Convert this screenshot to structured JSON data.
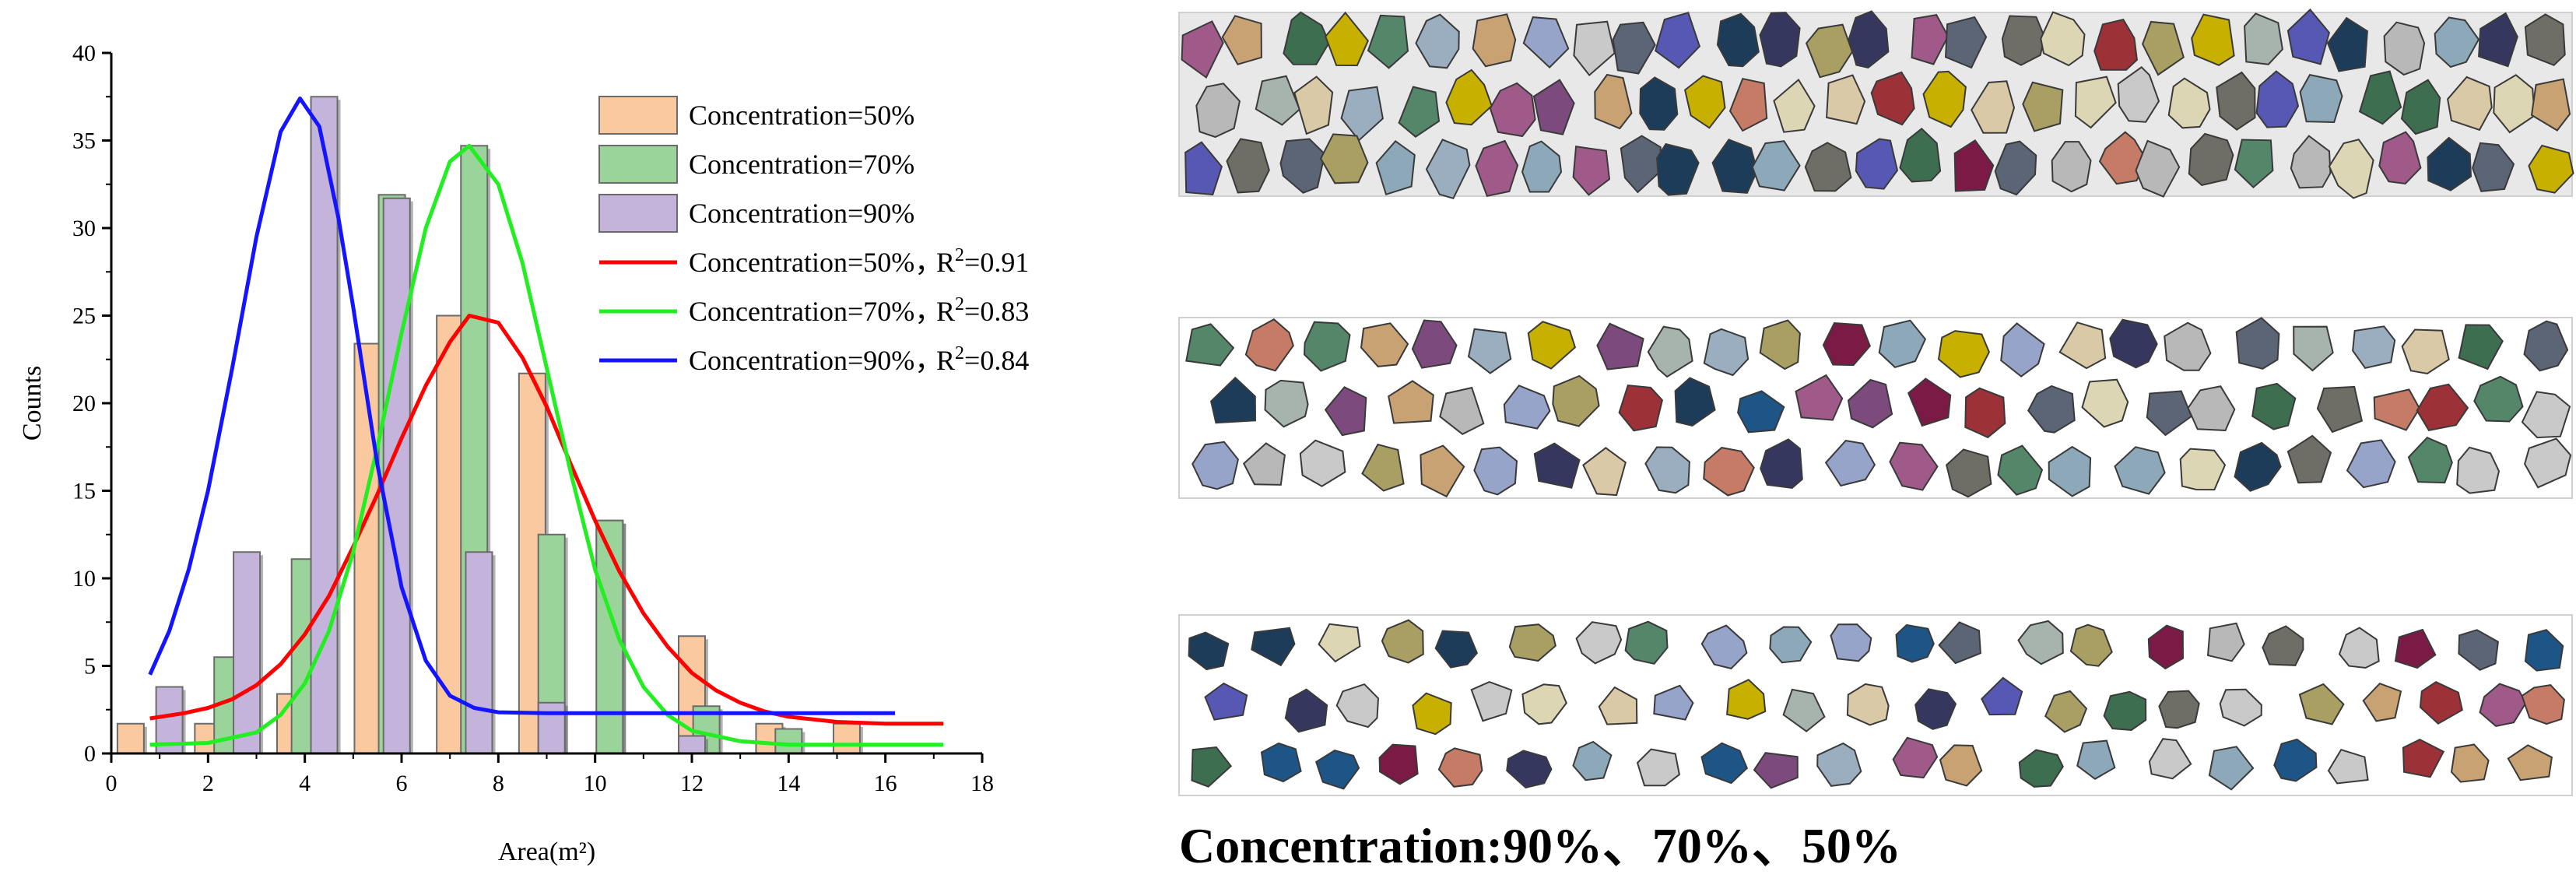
{
  "chart_data": {
    "type": "bar",
    "xlabel": "Area(m²)",
    "ylabel": "Counts",
    "xlim": [
      0,
      18
    ],
    "ylim": [
      0,
      40
    ],
    "xticks": [
      0,
      2,
      4,
      6,
      8,
      10,
      12,
      14,
      16,
      18
    ],
    "yticks": [
      0,
      5,
      10,
      15,
      20,
      25,
      30,
      35,
      40
    ],
    "grid": false,
    "legend_position": "top-right",
    "bar_series": [
      {
        "name": "Concentration=50%",
        "color": "#fbc9a0",
        "points": [
          [
            0.4,
            1.7
          ],
          [
            2.0,
            1.7
          ],
          [
            3.7,
            3.4
          ],
          [
            5.3,
            23.4
          ],
          [
            7.0,
            25.0
          ],
          [
            8.7,
            21.7
          ],
          [
            10.3,
            13.3
          ],
          [
            12.0,
            6.7
          ],
          [
            13.6,
            1.7
          ],
          [
            15.2,
            1.7
          ]
        ]
      },
      {
        "name": "Concentration=70%",
        "color": "#9bd49b",
        "points": [
          [
            2.4,
            5.5
          ],
          [
            4.0,
            11.1
          ],
          [
            5.8,
            31.9
          ],
          [
            7.5,
            34.7
          ],
          [
            9.1,
            12.5
          ],
          [
            10.3,
            13.3
          ],
          [
            12.3,
            2.7
          ],
          [
            14.0,
            1.4
          ]
        ]
      },
      {
        "name": "Concentration=90%",
        "color": "#c4b4dc",
        "points": [
          [
            1.2,
            3.8
          ],
          [
            2.8,
            11.5
          ],
          [
            4.4,
            37.5
          ],
          [
            5.9,
            31.7
          ],
          [
            7.6,
            11.5
          ],
          [
            9.1,
            2.9
          ],
          [
            12.0,
            1.0
          ]
        ]
      }
    ],
    "fit_series": [
      {
        "name": "Concentration=50%，R²=0.91",
        "label": "Concentration=50%，",
        "r2_label": "R",
        "r2_sup": "2",
        "r2_value": "=0.91",
        "color": "#ff0000",
        "x": [
          0.8,
          1.5,
          2.0,
          2.5,
          3.0,
          3.5,
          4.0,
          4.5,
          5.0,
          5.5,
          6.0,
          6.5,
          7.0,
          7.4,
          8.0,
          8.5,
          9.0,
          9.5,
          10.0,
          10.5,
          11.0,
          11.5,
          12.0,
          12.5,
          13.0,
          13.5,
          14.0,
          15.0,
          16.0,
          17.2
        ],
        "y": [
          2.0,
          2.3,
          2.6,
          3.1,
          3.9,
          5.1,
          6.8,
          9.0,
          11.8,
          14.8,
          18.0,
          21.0,
          23.5,
          25.0,
          24.6,
          22.6,
          19.8,
          16.5,
          13.3,
          10.4,
          8.0,
          6.1,
          4.6,
          3.6,
          2.9,
          2.4,
          2.1,
          1.8,
          1.7,
          1.7
        ]
      },
      {
        "name": "Concentration=70%，R²=0.83",
        "label": "Concentration=70%，",
        "r2_label": "R",
        "r2_sup": "2",
        "r2_value": "=0.83",
        "color": "#22ee22",
        "x": [
          0.8,
          2.0,
          3.0,
          3.5,
          4.0,
          4.5,
          5.0,
          5.5,
          6.0,
          6.5,
          7.0,
          7.4,
          8.0,
          8.5,
          9.0,
          9.5,
          10.0,
          10.5,
          11.0,
          11.5,
          12.0,
          13.0,
          14.0,
          15.0,
          17.2
        ],
        "y": [
          0.5,
          0.6,
          1.2,
          2.2,
          4.0,
          7.0,
          11.5,
          17.5,
          24.0,
          30.0,
          33.8,
          34.7,
          32.5,
          28.0,
          22.0,
          16.0,
          10.5,
          6.5,
          3.8,
          2.2,
          1.3,
          0.7,
          0.5,
          0.5,
          0.5
        ]
      },
      {
        "name": "Concentration=90%，R²=0.84",
        "label": "Concentration=90%，",
        "r2_label": "R",
        "r2_sup": "2",
        "r2_value": "=0.84",
        "color": "#1414ff",
        "x": [
          0.8,
          1.2,
          1.6,
          2.0,
          2.5,
          3.0,
          3.5,
          3.9,
          4.3,
          4.7,
          5.0,
          5.5,
          6.0,
          6.5,
          7.0,
          7.5,
          8.0,
          9.0,
          10.0,
          12.0,
          14.0,
          16.2
        ],
        "y": [
          4.5,
          7.0,
          10.5,
          15.0,
          22.0,
          29.5,
          35.5,
          37.4,
          35.8,
          30.5,
          25.5,
          16.5,
          9.5,
          5.3,
          3.3,
          2.6,
          2.35,
          2.3,
          2.3,
          2.3,
          2.3,
          2.3
        ]
      }
    ]
  },
  "voronoi_panels": {
    "palette": [
      "#c9a273",
      "#6e6e66",
      "#a7b4ad",
      "#9c3137",
      "#a99f63",
      "#dcd6b4",
      "#5757b4",
      "#1d5587",
      "#7d4a7e",
      "#7a1a45",
      "#97a4c9",
      "#c57b65",
      "#36375e",
      "#54866a",
      "#c7b000",
      "#9aaec0",
      "#5b6576",
      "#b8b8b8",
      "#1c3c5a",
      "#d9c9a6",
      "#8da8b8",
      "#c9c9c9",
      "#a05a8a",
      "#3e6e50"
    ]
  },
  "caption": "Concentration:90%、70%、50%"
}
